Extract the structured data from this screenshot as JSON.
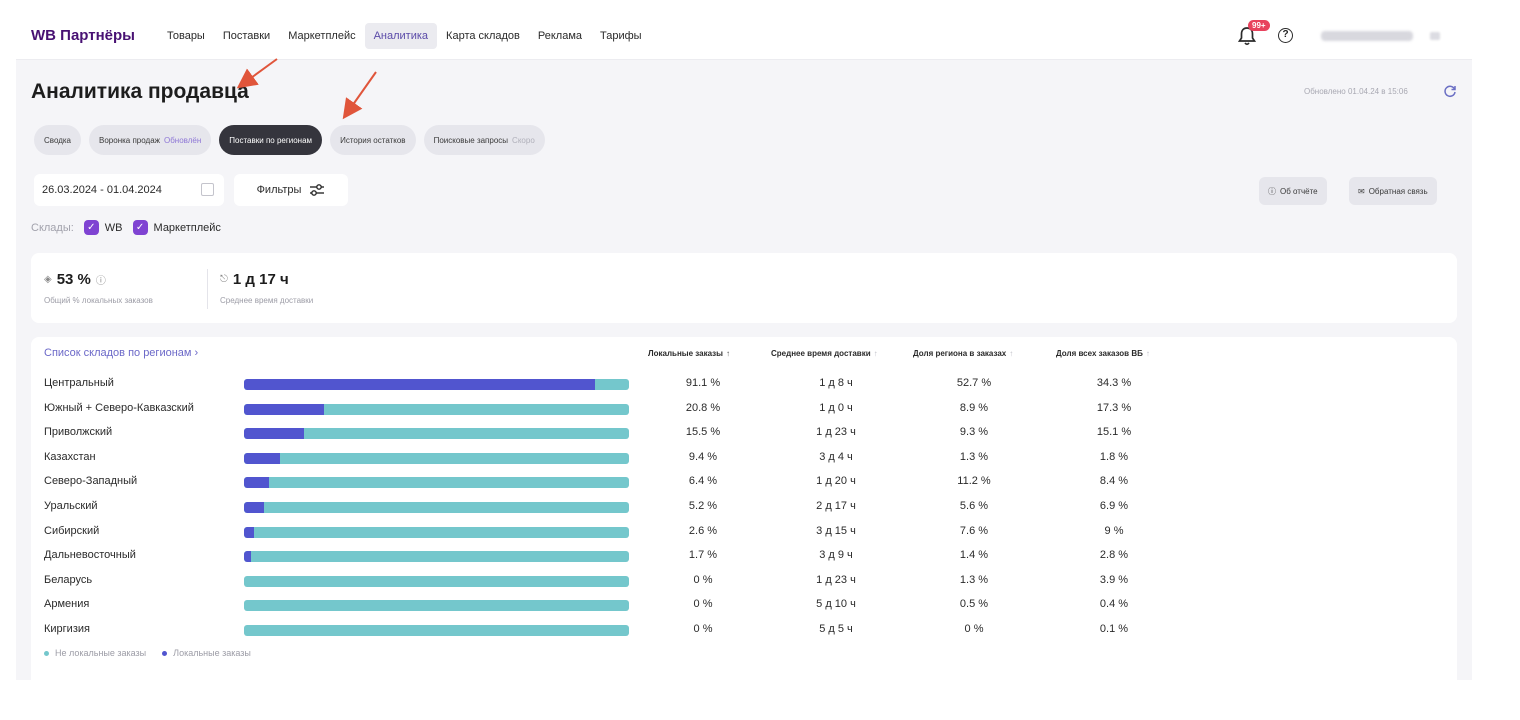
{
  "header": {
    "logo": "WB Партнёры",
    "nav": [
      {
        "label": "Товары",
        "active": false
      },
      {
        "label": "Поставки",
        "active": false
      },
      {
        "label": "Маркетплейс",
        "active": false
      },
      {
        "label": "Аналитика",
        "active": true
      },
      {
        "label": "Карта складов",
        "active": false
      },
      {
        "label": "Реклама",
        "active": false
      },
      {
        "label": "Тарифы",
        "active": false
      }
    ],
    "notifications_badge": "99+",
    "help_symbol": "?"
  },
  "page": {
    "title": "Аналитика продавца",
    "updated": "Обновлено 01.04.24 в 15:06"
  },
  "tabs": [
    {
      "label": "Сводка",
      "note": ""
    },
    {
      "label": "Воронка продаж",
      "note": "Обновлён"
    },
    {
      "label": "Поставки по регионам",
      "note": ""
    },
    {
      "label": "История остатков",
      "note": ""
    },
    {
      "label": "Поисковые запросы",
      "note": "Скоро"
    }
  ],
  "filters": {
    "date_range": "26.03.2024 - 01.04.2024",
    "filter_label": "Фильтры",
    "about_report": "Об отчёте",
    "feedback": "Обратная связь",
    "warehouses_label": "Склады:",
    "warehouses": [
      {
        "label": "WB",
        "checked": true
      },
      {
        "label": "Маркетплейс",
        "checked": true
      }
    ]
  },
  "kpis": [
    {
      "value": "53 %",
      "label": "Общий % локальных заказов"
    },
    {
      "value": "1 д 17 ч",
      "label": "Среднее время доставки"
    }
  ],
  "table": {
    "list_link": "Список складов по регионам ›",
    "columns": [
      "Локальные заказы",
      "Среднее время доставки",
      "Доля региона в заказах",
      "Доля всех заказов ВБ"
    ],
    "rows": [
      {
        "region": "Центральный",
        "local_fraction": 0.911,
        "local": "91.1 %",
        "delivery": "1 д 8 ч",
        "region_share": "52.7 %",
        "total_share": "34.3 %"
      },
      {
        "region": "Южный + Северо-Кавказский",
        "local_fraction": 0.208,
        "local": "20.8 %",
        "delivery": "1 д 0 ч",
        "region_share": "8.9 %",
        "total_share": "17.3 %"
      },
      {
        "region": "Приволжский",
        "local_fraction": 0.155,
        "local": "15.5 %",
        "delivery": "1 д 23 ч",
        "region_share": "9.3 %",
        "total_share": "15.1 %"
      },
      {
        "region": "Казахстан",
        "local_fraction": 0.094,
        "local": "9.4 %",
        "delivery": "3 д 4 ч",
        "region_share": "1.3 %",
        "total_share": "1.8 %"
      },
      {
        "region": "Северо-Западный",
        "local_fraction": 0.064,
        "local": "6.4 %",
        "delivery": "1 д 20 ч",
        "region_share": "11.2 %",
        "total_share": "8.4 %"
      },
      {
        "region": "Уральский",
        "local_fraction": 0.052,
        "local": "5.2 %",
        "delivery": "2 д 17 ч",
        "region_share": "5.6 %",
        "total_share": "6.9 %"
      },
      {
        "region": "Сибирский",
        "local_fraction": 0.026,
        "local": "2.6 %",
        "delivery": "3 д 15 ч",
        "region_share": "7.6 %",
        "total_share": "9 %"
      },
      {
        "region": "Дальневосточный",
        "local_fraction": 0.017,
        "local": "1.7 %",
        "delivery": "3 д 9 ч",
        "region_share": "1.4 %",
        "total_share": "2.8 %"
      },
      {
        "region": "Беларусь",
        "local_fraction": 0,
        "local": "0 %",
        "delivery": "1 д 23 ч",
        "region_share": "1.3 %",
        "total_share": "3.9 %"
      },
      {
        "region": "Армения",
        "local_fraction": 0,
        "local": "0 %",
        "delivery": "5 д 10 ч",
        "region_share": "0.5 %",
        "total_share": "0.4 %"
      },
      {
        "region": "Киргизия",
        "local_fraction": 0,
        "local": "0 %",
        "delivery": "5 д 5 ч",
        "region_share": "0 %",
        "total_share": "0.1 %"
      }
    ],
    "legend": [
      {
        "label": "Не локальные заказы",
        "color": "#74c7cc"
      },
      {
        "label": "Локальные заказы",
        "color": "#5155cf"
      }
    ]
  },
  "colors": {
    "brand": "#481173",
    "accent": "#7f43d2",
    "local_bar": "#5155cf",
    "nonlocal_bar": "#74c7cc",
    "annotation_arrow": "#e0553b"
  }
}
